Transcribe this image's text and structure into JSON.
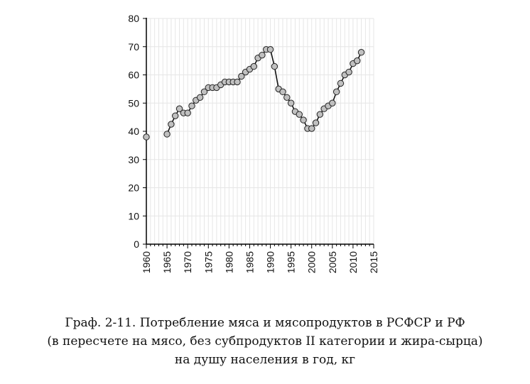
{
  "chart_data": {
    "type": "line",
    "title": "",
    "xlabel": "",
    "ylabel": "",
    "xlim": [
      1960,
      2015
    ],
    "ylim": [
      0,
      80
    ],
    "x_ticks": [
      "1960",
      "1965",
      "1970",
      "1975",
      "1980",
      "1985",
      "1990",
      "1995",
      "2000",
      "2005",
      "2010",
      "2015"
    ],
    "y_ticks": [
      "0",
      "10",
      "20",
      "30",
      "40",
      "50",
      "60",
      "70",
      "80"
    ],
    "grid": true,
    "legend": "none",
    "series": [
      {
        "color": "#111111",
        "marker_color": "#c0c0c0",
        "segments": [
          {
            "x": [
              1960
            ],
            "y": [
              38
            ]
          },
          {
            "x": [
              1965,
              1966,
              1967,
              1968,
              1969,
              1970,
              1971,
              1972,
              1973,
              1974,
              1975,
              1976,
              1977,
              1978,
              1979,
              1980,
              1981,
              1982,
              1983,
              1984,
              1985,
              1986,
              1987,
              1988,
              1989,
              1990,
              1991,
              1992,
              1993,
              1994,
              1995,
              1996,
              1997,
              1998,
              1999,
              2000,
              2001,
              2002,
              2003,
              2004,
              2005,
              2006,
              2007,
              2008,
              2009,
              2010,
              2011,
              2012
            ],
            "y": [
              39,
              42.5,
              45.5,
              48,
              46.5,
              46.5,
              49,
              51,
              52,
              54,
              55.5,
              55.5,
              55.5,
              56.5,
              57.5,
              57.5,
              57.5,
              57.5,
              59.5,
              61,
              62,
              63,
              66,
              67,
              69,
              69,
              63,
              55,
              54,
              52,
              50,
              47,
              46,
              44,
              41,
              41,
              43,
              46,
              48,
              49,
              50,
              54,
              57,
              60,
              61,
              64,
              65,
              68
            ]
          }
        ]
      }
    ]
  },
  "caption": {
    "line1": "Граф. 2-11. Потребление мяса и мясопродуктов в РСФСР и РФ",
    "line2": "(в пересчете на мясо, без субпродуктов II категории и жира-сырца)",
    "line3": "на душу населения в год, кг"
  }
}
